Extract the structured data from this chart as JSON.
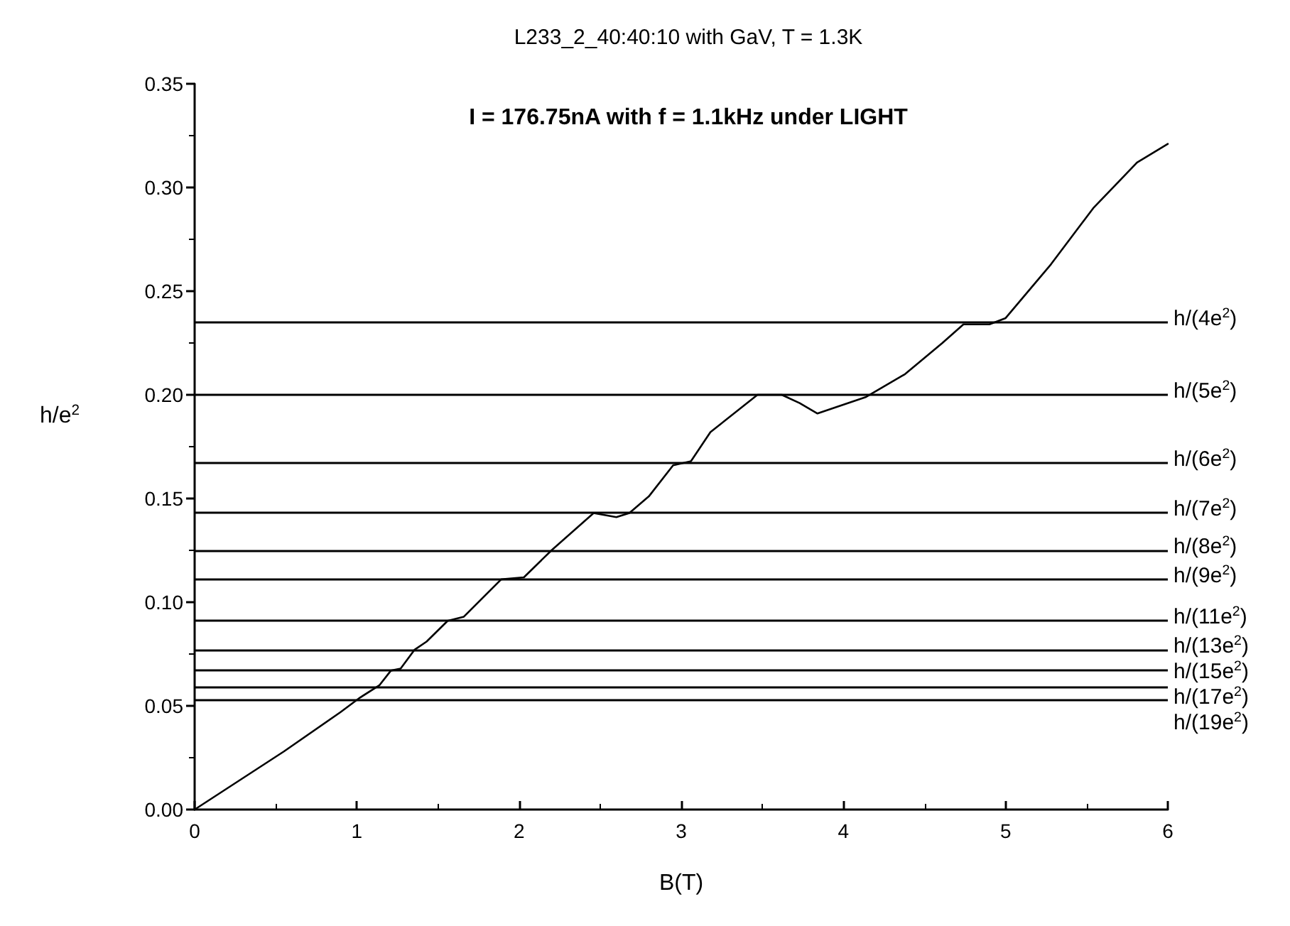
{
  "chart_data": {
    "type": "line",
    "title": "L233_2_40:40:10 with GaV, T = 1.3K",
    "subtitle": "I = 176.75nA with f = 1.1kHz under LIGHT",
    "xlabel": "B(T)",
    "ylabel": "h/e$^{2}$",
    "xlim": [
      0,
      6
    ],
    "xticks": [
      0,
      1,
      2,
      3,
      4,
      5,
      6
    ],
    "ylim": [
      0,
      0.35
    ],
    "yticks": [
      {
        "value": 0,
        "label": "0.00"
      },
      0.05,
      {
        "value": 0.1,
        "label": "0.10"
      },
      0.15,
      {
        "value": 0.2,
        "label": "0.20"
      },
      0.25,
      {
        "value": 0.3,
        "label": "0.30"
      },
      0.35
    ],
    "grid": false,
    "marker": "none",
    "line_style": "solid",
    "series": [
      {
        "color": "#000000",
        "x": [
          0,
          0.55,
          0.9,
          1.02,
          1.14,
          1.21,
          1.27,
          1.355,
          1.43,
          1.56,
          1.66,
          1.89,
          2.03,
          2.2,
          2.46,
          2.6,
          2.68,
          2.8,
          2.95,
          3.06,
          3.18,
          3.47,
          3.62,
          3.73,
          3.84,
          4.14,
          4.38,
          4.61,
          4.74,
          4.9,
          5.0,
          5.28,
          5.54,
          5.81,
          6.0
        ],
        "values": [
          0,
          0.028,
          0.047,
          0.054,
          0.06,
          0.067,
          0.068,
          0.077,
          0.081,
          0.091,
          0.093,
          0.111,
          0.112,
          0.125,
          0.143,
          0.141,
          0.143,
          0.151,
          0.166,
          0.168,
          0.182,
          0.2,
          0.2,
          0.196,
          0.191,
          0.199,
          0.21,
          0.225,
          0.234,
          0.234,
          0.237,
          0.263,
          0.29,
          0.312,
          0.321
        ]
      }
    ],
    "ref_lines": [
      {
        "axis": "y",
        "value": 0.235,
        "label": "h/(4e$^{2}$)",
        "color": "#000000"
      },
      {
        "axis": "y",
        "value": 0.2,
        "label": "h/(5e$^{2}$)",
        "color": "#000000"
      },
      {
        "axis": "y",
        "value": 0.167,
        "label": "h/(6e$^{2}$)",
        "color": "#000000"
      },
      {
        "axis": "y",
        "value": 0.143,
        "label": "h/(7e$^{2}$)",
        "color": "#000000"
      },
      {
        "axis": "y",
        "value": 0.125,
        "label": "h/(8e$^{2}$)",
        "color": "#000000"
      },
      {
        "axis": "y",
        "value": 0.111,
        "label": "h/(9e$^{2}$)",
        "color": "#000000"
      },
      {
        "axis": "y",
        "value": 0.091,
        "label": "h/(11e$^{2}$)",
        "color": "#000000"
      },
      {
        "axis": "y",
        "value": 0.077,
        "label": "h/(13e$^{2}$)",
        "color": "#000000"
      },
      {
        "axis": "y",
        "value": 0.067,
        "label": "h/(15e$^{2}$)",
        "color": "#000000"
      },
      {
        "axis": "y",
        "value": 0.059,
        "label": "h/(17e$^{2}$)",
        "color": "#000000"
      },
      {
        "axis": "y",
        "value": 0.053,
        "label": "h/(19e$^{2}$)",
        "color": "#000000"
      }
    ]
  }
}
